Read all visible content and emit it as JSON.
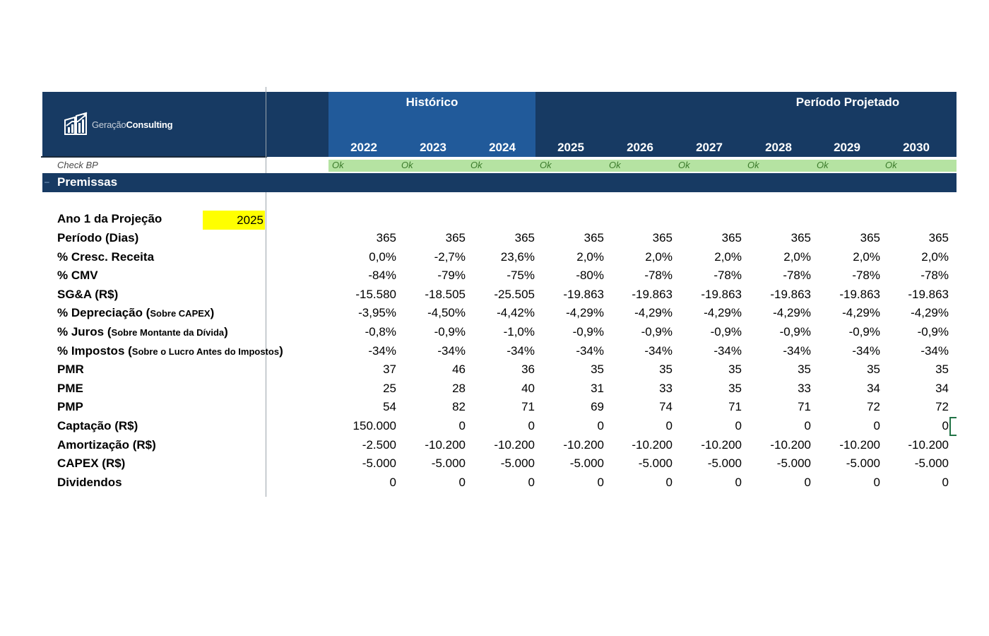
{
  "brand": {
    "logo_light": "Geração",
    "logo_bold": "Consulting"
  },
  "header": {
    "historico_label": "Histórico",
    "projetado_label": "Período Projetado",
    "years": [
      "2022",
      "2023",
      "2024",
      "2025",
      "2026",
      "2027",
      "2028",
      "2029",
      "2030"
    ]
  },
  "check": {
    "label": "Check BP",
    "values": [
      "Ok",
      "Ok",
      "Ok",
      "Ok",
      "Ok",
      "Ok",
      "Ok",
      "Ok",
      "Ok"
    ]
  },
  "section": {
    "title": "Premissas"
  },
  "projection_start": {
    "label": "Ano 1 da Projeção",
    "value": "2025"
  },
  "rows": [
    {
      "label": "Período (Dias)",
      "note": "",
      "values": [
        "365",
        "365",
        "365",
        "365",
        "365",
        "365",
        "365",
        "365",
        "365"
      ]
    },
    {
      "label": "% Cresc. Receita",
      "note": "",
      "values": [
        "0,0%",
        "-2,7%",
        "23,6%",
        "2,0%",
        "2,0%",
        "2,0%",
        "2,0%",
        "2,0%",
        "2,0%"
      ]
    },
    {
      "label": "% CMV",
      "note": "",
      "values": [
        "-84%",
        "-79%",
        "-75%",
        "-80%",
        "-78%",
        "-78%",
        "-78%",
        "-78%",
        "-78%"
      ]
    },
    {
      "label": "SG&A (R$)",
      "note": "",
      "values": [
        "-15.580",
        "-18.505",
        "-25.505",
        "-19.863",
        "-19.863",
        "-19.863",
        "-19.863",
        "-19.863",
        "-19.863"
      ]
    },
    {
      "label": "% Depreciação (",
      "note": "Sobre CAPEX",
      "close": ")",
      "values": [
        "-3,95%",
        "-4,50%",
        "-4,42%",
        "-4,29%",
        "-4,29%",
        "-4,29%",
        "-4,29%",
        "-4,29%",
        "-4,29%"
      ]
    },
    {
      "label": "% Juros (",
      "note": "Sobre Montante da Dívida",
      "close": ")",
      "values": [
        "-0,8%",
        "-0,9%",
        "-1,0%",
        "-0,9%",
        "-0,9%",
        "-0,9%",
        "-0,9%",
        "-0,9%",
        "-0,9%"
      ]
    },
    {
      "label": "% Impostos (",
      "note": "Sobre o Lucro Antes do Impostos",
      "close": ")",
      "values": [
        "-34%",
        "-34%",
        "-34%",
        "-34%",
        "-34%",
        "-34%",
        "-34%",
        "-34%",
        "-34%"
      ]
    },
    {
      "label": "PMR",
      "note": "",
      "values": [
        "37",
        "46",
        "36",
        "35",
        "35",
        "35",
        "35",
        "35",
        "35"
      ]
    },
    {
      "label": "PME",
      "note": "",
      "values": [
        "25",
        "28",
        "40",
        "31",
        "33",
        "35",
        "33",
        "34",
        "34"
      ]
    },
    {
      "label": "PMP",
      "note": "",
      "values": [
        "54",
        "82",
        "71",
        "69",
        "74",
        "71",
        "71",
        "72",
        "72"
      ]
    },
    {
      "label": "Captação (R$)",
      "note": "",
      "values": [
        "150.000",
        "0",
        "0",
        "0",
        "0",
        "0",
        "0",
        "0",
        "0"
      ]
    },
    {
      "label": "Amortização (R$)",
      "note": "",
      "values": [
        "-2.500",
        "-10.200",
        "-10.200",
        "-10.200",
        "-10.200",
        "-10.200",
        "-10.200",
        "-10.200",
        "-10.200"
      ]
    },
    {
      "label": "CAPEX (R$)",
      "note": "",
      "values": [
        "-5.000",
        "-5.000",
        "-5.000",
        "-5.000",
        "-5.000",
        "-5.000",
        "-5.000",
        "-5.000",
        "-5.000"
      ]
    },
    {
      "label": "Dividendos",
      "note": "",
      "values": [
        "0",
        "0",
        "0",
        "0",
        "0",
        "0",
        "0",
        "0",
        "0"
      ]
    }
  ]
}
